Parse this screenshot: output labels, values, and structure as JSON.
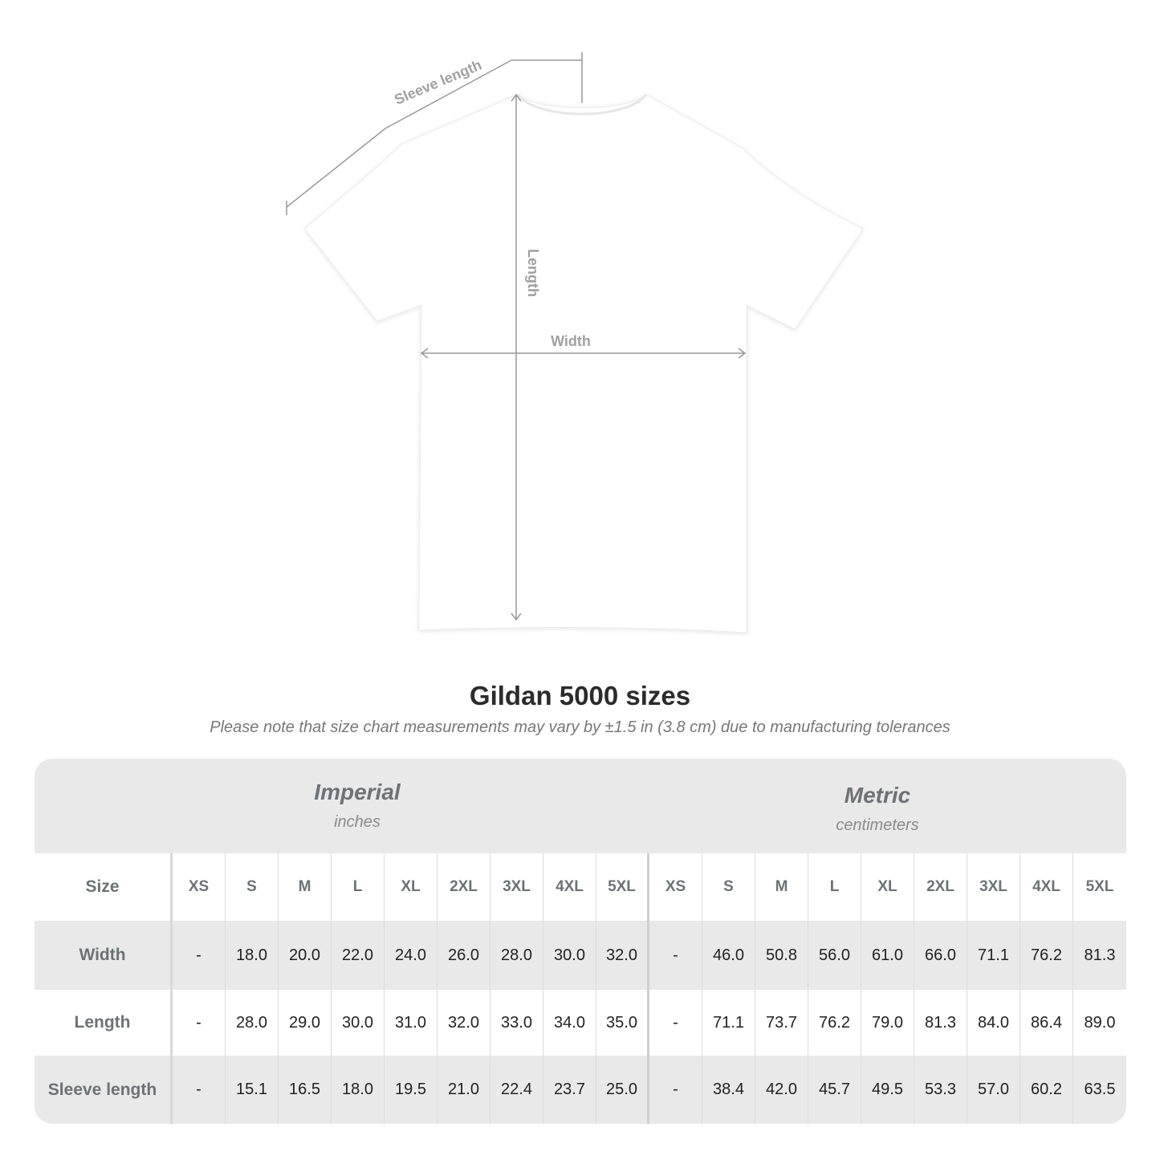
{
  "diagram": {
    "labels": {
      "sleeve": "Sleeve length",
      "length": "Length",
      "width": "Width"
    }
  },
  "title": "Gildan 5000 sizes",
  "subtitle": "Please note that size chart measurements may vary by ±1.5 in (3.8 cm) due to manufacturing tolerances",
  "table": {
    "imperial": {
      "name": "Imperial",
      "unit": "inches"
    },
    "metric": {
      "name": "Metric",
      "unit": "centimeters"
    },
    "size_label": "Size",
    "sizes": [
      "XS",
      "S",
      "M",
      "L",
      "XL",
      "2XL",
      "3XL",
      "4XL",
      "5XL",
      "XS",
      "S",
      "M",
      "L",
      "XL",
      "2XL",
      "3XL",
      "4XL",
      "5XL"
    ],
    "rows": [
      {
        "label": "Width",
        "values": [
          "-",
          "18.0",
          "20.0",
          "22.0",
          "24.0",
          "26.0",
          "28.0",
          "30.0",
          "32.0",
          "-",
          "46.0",
          "50.8",
          "56.0",
          "61.0",
          "66.0",
          "71.1",
          "76.2",
          "81.3"
        ]
      },
      {
        "label": "Length",
        "values": [
          "-",
          "28.0",
          "29.0",
          "30.0",
          "31.0",
          "32.0",
          "33.0",
          "34.0",
          "35.0",
          "-",
          "71.1",
          "73.7",
          "76.2",
          "79.0",
          "81.3",
          "84.0",
          "86.4",
          "89.0"
        ]
      },
      {
        "label": "Sleeve length",
        "values": [
          "-",
          "15.1",
          "16.5",
          "18.0",
          "19.5",
          "21.0",
          "22.4",
          "23.7",
          "25.0",
          "-",
          "38.4",
          "42.0",
          "45.7",
          "49.5",
          "53.3",
          "57.0",
          "60.2",
          "63.5"
        ]
      }
    ]
  },
  "colors": {
    "shirt": "#ffffff",
    "measure_line": "#9a9a9a",
    "band": "#e9e9e9",
    "label": "#6d7274"
  }
}
